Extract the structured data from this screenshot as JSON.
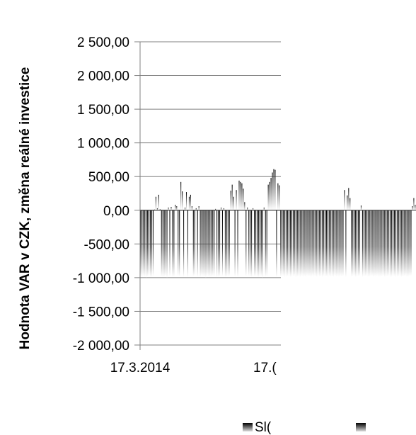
{
  "chart_data": {
    "type": "bar",
    "ylabel": "Hodnota VAR v CZK, změna reálné investice",
    "xlabel": "",
    "ylim": [
      -2000,
      2500
    ],
    "ytick_labels": [
      "2 500,00",
      "2 000,00",
      "1 500,00",
      "1 000,00",
      "500,00",
      "0,00",
      "-500,00",
      "-1 000,00",
      "-1 500,00",
      "-2 000,00"
    ],
    "ytick_values": [
      2500,
      2000,
      1500,
      1000,
      500,
      0,
      -500,
      -1000,
      -1500,
      -2000
    ],
    "x_tick_labels": [
      "17.3.2014",
      "17.("
    ],
    "grid": "horizontal",
    "legend": {
      "placement": "bottom",
      "entries": [
        "Sl(",
        ""
      ]
    },
    "series": [
      {
        "values": [
          -980,
          -990,
          -975,
          -985,
          -995,
          -980,
          -970,
          -985,
          -990,
          -975,
          10,
          200,
          30,
          230,
          15,
          -980,
          -990,
          -985,
          -975,
          -995,
          40,
          -980,
          50,
          -985,
          -990,
          80,
          60,
          -975,
          -980,
          420,
          280,
          -985,
          40,
          270,
          -990,
          200,
          230,
          60,
          -980,
          -975,
          30,
          -985,
          60,
          -990,
          -975,
          -980,
          -985,
          -995,
          -970,
          -980,
          -990,
          -985,
          -975,
          -980,
          20,
          -990,
          -985,
          -980,
          40,
          -975,
          30,
          -990,
          -985,
          -980,
          -975,
          290,
          380,
          200,
          -985,
          300,
          -990,
          440,
          420,
          400,
          320,
          120,
          -980,
          40,
          -975,
          -985,
          -990,
          30,
          -980,
          -975,
          -985,
          -990,
          -980,
          -975,
          -995,
          40,
          -985,
          -980,
          380,
          420,
          480,
          560,
          610,
          600,
          -990,
          400,
          370,
          -985,
          -980,
          -975,
          -990,
          -985,
          -980,
          -975,
          -990,
          -985,
          -980,
          -975,
          -995,
          -985,
          -980,
          -990,
          -975,
          -985,
          -980,
          -990,
          -975,
          -985,
          -980,
          -990,
          -975,
          -985,
          -980,
          -990,
          -975,
          -985,
          -980,
          -990,
          -975,
          -985,
          -980,
          -990,
          -975,
          -985,
          -980,
          -990,
          -975,
          -985,
          -980,
          -990,
          -975,
          -985,
          -980,
          300,
          -990,
          220,
          330,
          180,
          -985,
          -980,
          -975,
          -990,
          -985,
          -980,
          -975,
          70,
          -990,
          -985,
          -980,
          -975,
          -990,
          -985,
          -980,
          -975,
          -990,
          -985,
          -980,
          -975,
          -990,
          -985,
          -980,
          -975,
          -990,
          -985,
          -980,
          -975,
          -990,
          -985,
          -980,
          -975,
          -990,
          -985,
          -980,
          -975,
          -990,
          -985,
          -980,
          -975,
          -990,
          -985,
          -980,
          -975,
          60,
          180,
          80
        ]
      }
    ]
  }
}
